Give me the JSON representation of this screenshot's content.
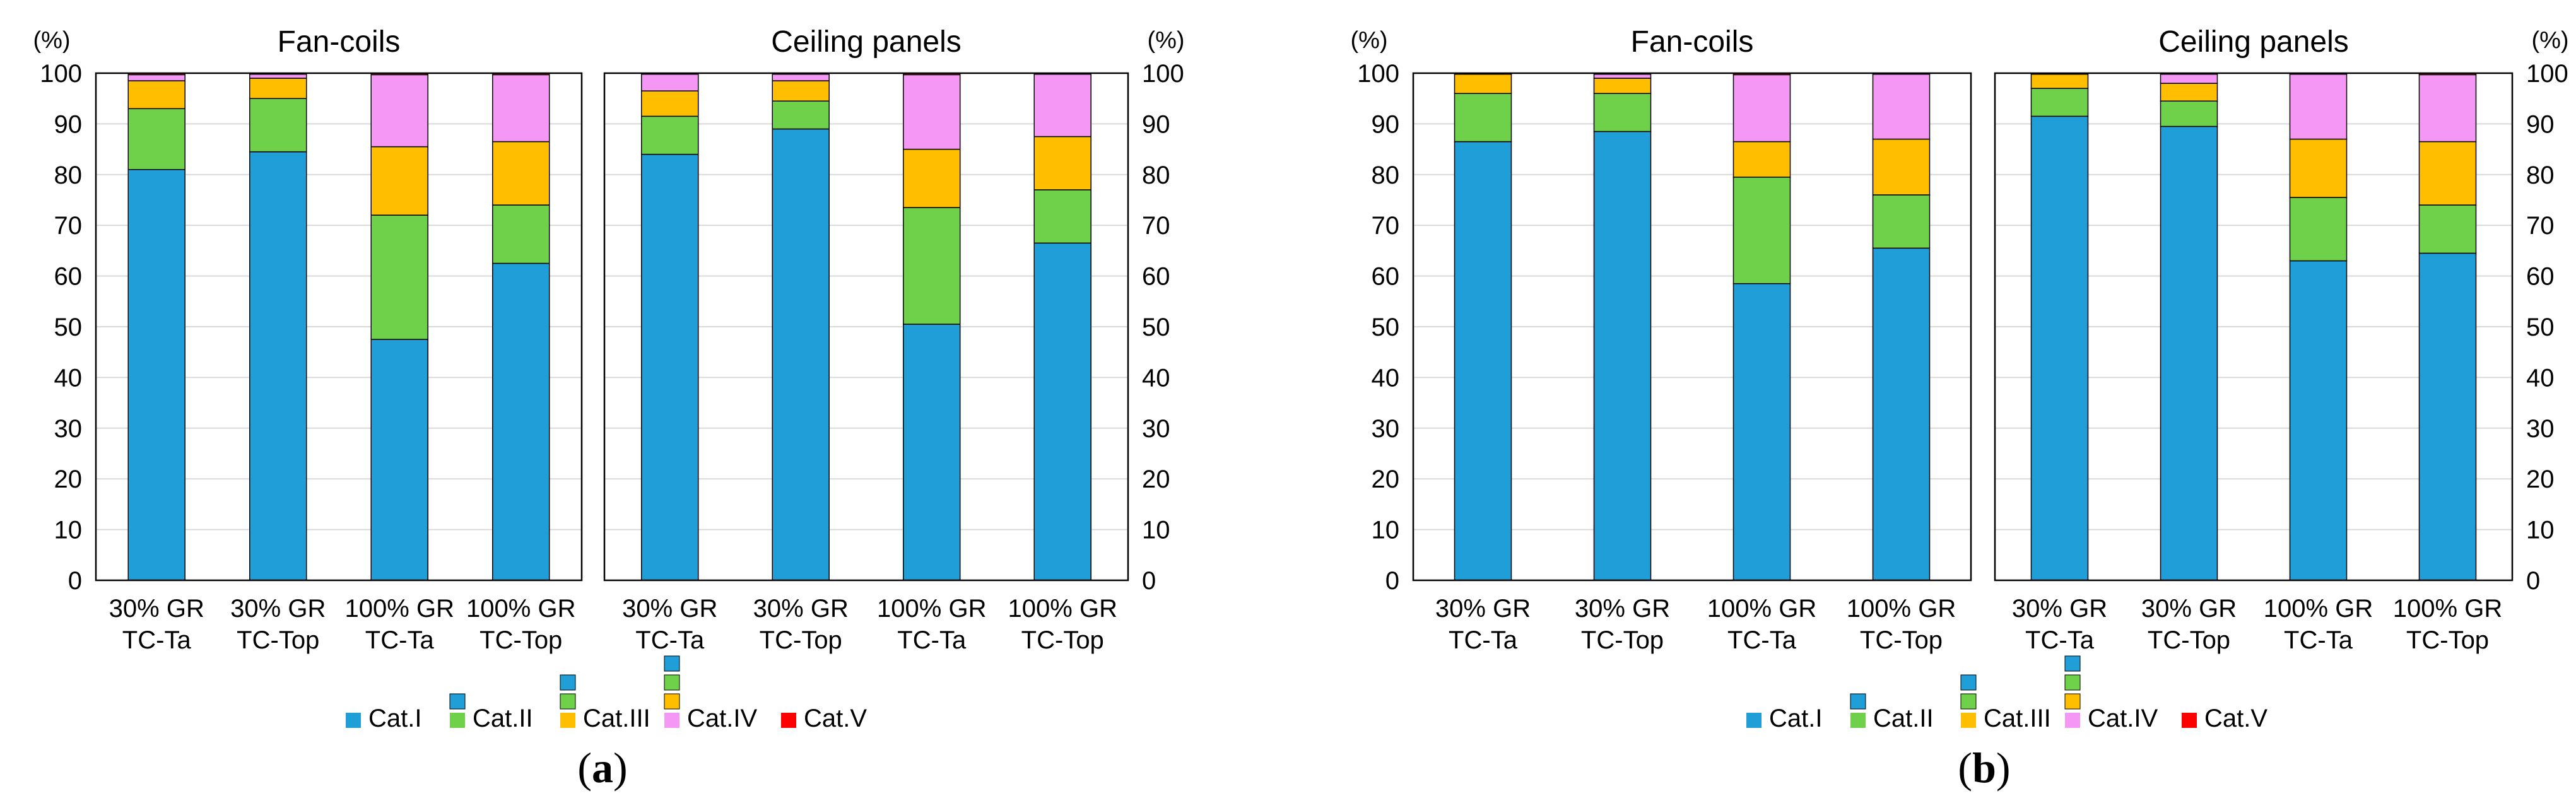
{
  "colors": {
    "cat1": "#1f9ed8",
    "cat2": "#6fd04a",
    "cat3": "#ffbf00",
    "cat4": "#f598f5",
    "cat5": "#ff0000",
    "grid": "#d9d9d9",
    "axis": "#000000"
  },
  "legend": [
    "Cat.I",
    "Cat.II",
    "Cat.III",
    "Cat.IV",
    "Cat.V"
  ],
  "y_unit": "(%)",
  "chart_data": [
    {
      "type": "bar",
      "stacked": true,
      "figure": "a",
      "title": "Fan-coils",
      "caption_prefix": "(",
      "caption_letter": "a",
      "caption_suffix": ")",
      "y_axis_side": "left",
      "ylim": [
        0,
        100
      ],
      "yticks": [
        0,
        10,
        20,
        30,
        40,
        50,
        60,
        70,
        80,
        90,
        100
      ],
      "categories": [
        [
          "30% GR",
          "TC-Ta"
        ],
        [
          "30% GR",
          "TC-Top"
        ],
        [
          "100% GR",
          "TC-Ta"
        ],
        [
          "100% GR",
          "TC-Top"
        ]
      ],
      "series": [
        {
          "name": "Cat.I",
          "values": [
            81,
            84.5,
            47.5,
            62.5
          ]
        },
        {
          "name": "Cat.II",
          "values": [
            12,
            10.5,
            24.5,
            11.5
          ]
        },
        {
          "name": "Cat.III",
          "values": [
            5.5,
            4,
            13.5,
            12.5
          ]
        },
        {
          "name": "Cat.IV",
          "values": [
            1.2,
            0.8,
            14.2,
            13.2
          ]
        },
        {
          "name": "Cat.V",
          "values": [
            0.3,
            0.2,
            0.3,
            0.3
          ]
        }
      ]
    },
    {
      "type": "bar",
      "stacked": true,
      "figure": "a",
      "title": "Ceiling panels",
      "y_axis_side": "right",
      "ylim": [
        0,
        100
      ],
      "yticks": [
        0,
        10,
        20,
        30,
        40,
        50,
        60,
        70,
        80,
        90,
        100
      ],
      "categories": [
        [
          "30% GR",
          "TC-Ta"
        ],
        [
          "30% GR",
          "TC-Top"
        ],
        [
          "100% GR",
          "TC-Ta"
        ],
        [
          "100% GR",
          "TC-Top"
        ]
      ],
      "series": [
        {
          "name": "Cat.I",
          "values": [
            84,
            89,
            50.5,
            66.5
          ]
        },
        {
          "name": "Cat.II",
          "values": [
            7.5,
            5.5,
            23,
            10.5
          ]
        },
        {
          "name": "Cat.III",
          "values": [
            5,
            4,
            11.5,
            10.5
          ]
        },
        {
          "name": "Cat.IV",
          "values": [
            3.3,
            1.3,
            14.7,
            12.3
          ]
        },
        {
          "name": "Cat.V",
          "values": [
            0.2,
            0.2,
            0.3,
            0.2
          ]
        }
      ]
    },
    {
      "type": "bar",
      "stacked": true,
      "figure": "b",
      "title": "Fan-coils",
      "caption_prefix": "(",
      "caption_letter": "b",
      "caption_suffix": ")",
      "y_axis_side": "left",
      "ylim": [
        0,
        100
      ],
      "yticks": [
        0,
        10,
        20,
        30,
        40,
        50,
        60,
        70,
        80,
        90,
        100
      ],
      "categories": [
        [
          "30% GR",
          "TC-Ta"
        ],
        [
          "30% GR",
          "TC-Top"
        ],
        [
          "100% GR",
          "TC-Ta"
        ],
        [
          "100% GR",
          "TC-Top"
        ]
      ],
      "series": [
        {
          "name": "Cat.I",
          "values": [
            86.5,
            88.5,
            58.5,
            65.5
          ]
        },
        {
          "name": "Cat.II",
          "values": [
            9.5,
            7.5,
            21,
            10.5
          ]
        },
        {
          "name": "Cat.III",
          "values": [
            3.8,
            3,
            7,
            11
          ]
        },
        {
          "name": "Cat.IV",
          "values": [
            0.1,
            0.8,
            13.2,
            12.8
          ]
        },
        {
          "name": "Cat.V",
          "values": [
            0.1,
            0.2,
            0.3,
            0.2
          ]
        }
      ]
    },
    {
      "type": "bar",
      "stacked": true,
      "figure": "b",
      "title": "Ceiling panels",
      "y_axis_side": "right",
      "ylim": [
        0,
        100
      ],
      "yticks": [
        0,
        10,
        20,
        30,
        40,
        50,
        60,
        70,
        80,
        90,
        100
      ],
      "categories": [
        [
          "30% GR",
          "TC-Ta"
        ],
        [
          "30% GR",
          "TC-Top"
        ],
        [
          "100% GR",
          "TC-Ta"
        ],
        [
          "100% GR",
          "TC-Top"
        ]
      ],
      "series": [
        {
          "name": "Cat.I",
          "values": [
            91.5,
            89.5,
            63,
            64.5
          ]
        },
        {
          "name": "Cat.II",
          "values": [
            5.5,
            5,
            12.5,
            9.5
          ]
        },
        {
          "name": "Cat.III",
          "values": [
            2.8,
            3.5,
            11.5,
            12.5
          ]
        },
        {
          "name": "Cat.IV",
          "values": [
            0.1,
            1.8,
            12.8,
            13.2
          ]
        },
        {
          "name": "Cat.V",
          "values": [
            0.1,
            0.2,
            0.2,
            0.3
          ]
        }
      ]
    }
  ]
}
